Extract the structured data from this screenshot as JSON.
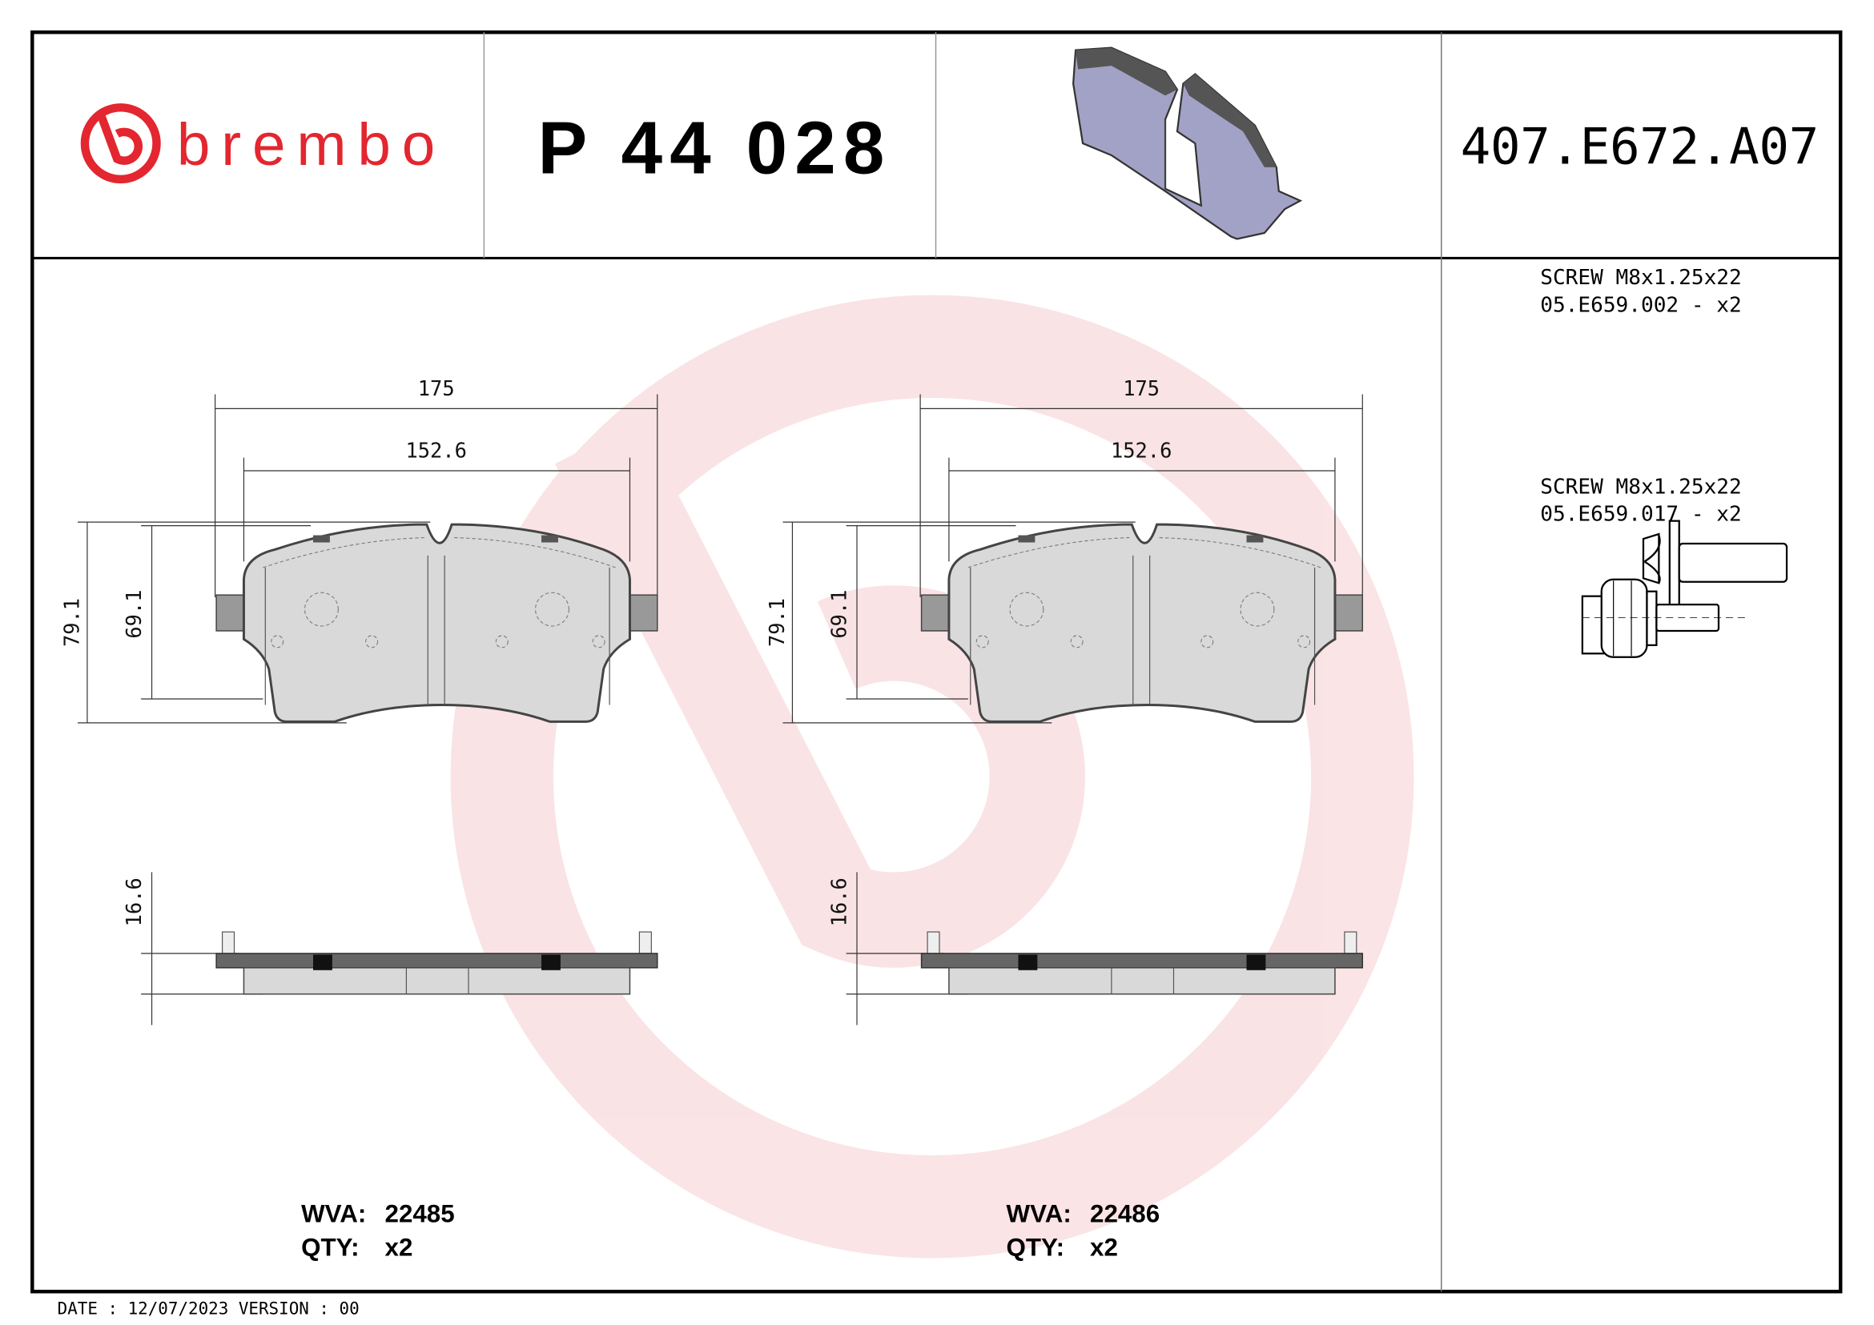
{
  "header": {
    "brand": "brembo",
    "part_number": "P 44 028",
    "code": "407.E672.A07"
  },
  "colors": {
    "brand_red": "#e3262f",
    "watermark": "#f9dfe1",
    "pad_3d": "#a2a2c6"
  },
  "drawings": [
    {
      "width_total": "175",
      "width_inner": "152.6",
      "height_total": "79.1",
      "height_inner": "69.1",
      "thickness": "16.6",
      "wva_label": "WVA:",
      "wva": "22485",
      "qty_label": "QTY:",
      "qty": "x2"
    },
    {
      "width_total": "175",
      "width_inner": "152.6",
      "height_total": "79.1",
      "height_inner": "69.1",
      "thickness": "16.6",
      "wva_label": "WVA:",
      "wva": "22486",
      "qty_label": "QTY:",
      "qty": "x2"
    }
  ],
  "accessories": [
    {
      "name": "SCREW M8x1.25x22",
      "code": "05.E659.002 - x2",
      "icon": "flange-bolt-icon"
    },
    {
      "name": "SCREW M8x1.25x22",
      "code": "05.E659.017 - x2",
      "icon": "bolt-with-sleeve-icon"
    }
  ],
  "footer": {
    "date_version": "DATE : 12/07/2023 VERSION : 00"
  }
}
